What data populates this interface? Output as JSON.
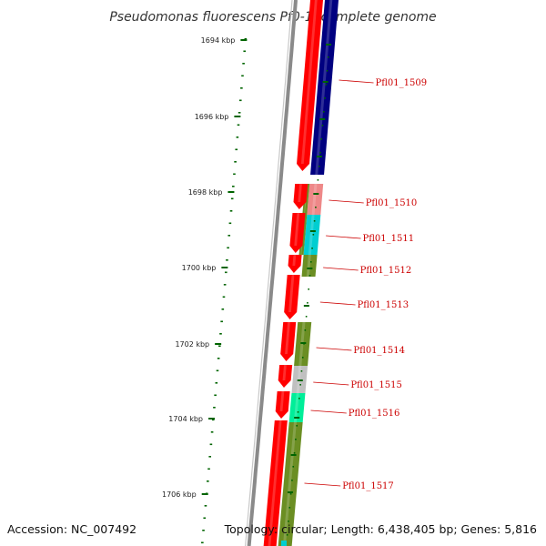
{
  "title": "Pseudomonas fluorescens Pf0-1, complete genome",
  "colors": {
    "backbone": "#8a8a8a",
    "forward_cds": "#ff0000",
    "reverse_cds_blue": "#000080",
    "olive": "#6b8e23",
    "pink": "#ee8888",
    "cyan": "#00ced1",
    "grey": "#c0c0c0",
    "aqua": "#00ee99",
    "gc_tick": "#006400",
    "label": "#cc0000"
  },
  "scale_labels": [
    "1694 kbp",
    "1696 kbp",
    "1698 kbp",
    "1700 kbp",
    "1702 kbp",
    "1704 kbp",
    "1706 kbp"
  ],
  "gene_labels": [
    "Pfl01_1509",
    "Pfl01_1510",
    "Pfl01_1511",
    "Pfl01_1512",
    "Pfl01_1513",
    "Pfl01_1514",
    "Pfl01_1515",
    "Pfl01_1516",
    "Pfl01_1517"
  ],
  "footer": {
    "accession": "Accession: NC_007492",
    "topology": "Topology: circular; Length: 6,438,405 bp; Genes: 5,816"
  }
}
